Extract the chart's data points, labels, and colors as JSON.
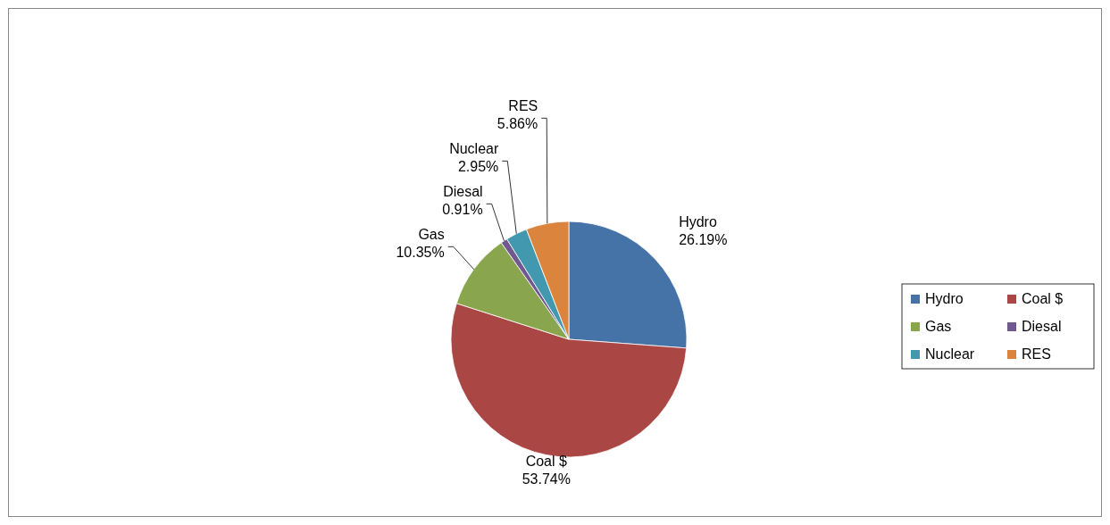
{
  "chart_data": {
    "type": "pie",
    "categories": [
      "Hydro",
      "Coal $",
      "Gas",
      "Diesal",
      "Nuclear",
      "RES"
    ],
    "values": [
      26.19,
      53.74,
      10.35,
      0.91,
      2.95,
      5.86
    ],
    "colors": [
      "#4572a7",
      "#aa4643",
      "#89a54e",
      "#71588f",
      "#4198af",
      "#db843d"
    ],
    "value_labels": [
      "26.19%",
      "53.74%",
      "10.35%",
      "0.91%",
      "2.95%",
      "5.86%"
    ],
    "legend": "right"
  }
}
